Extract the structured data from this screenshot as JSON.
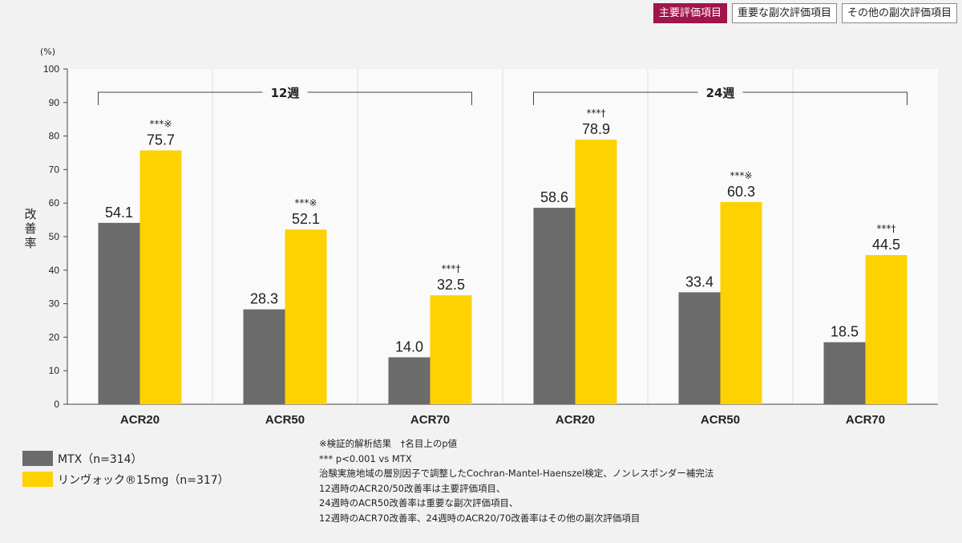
{
  "tabs": [
    {
      "label": "主要評価項目",
      "active": true
    },
    {
      "label": "重要な副次評価項目",
      "active": false
    },
    {
      "label": "その他の副次評価項目",
      "active": false
    }
  ],
  "colors": {
    "mtx": "#6b6b6b",
    "rinvoq": "#fdd200",
    "accent": "#a0154a"
  },
  "chart_data": {
    "type": "bar",
    "ylabel": "改善率",
    "yunit": "(%)",
    "ylim": [
      0,
      100
    ],
    "yticks": [
      0,
      10,
      20,
      30,
      40,
      50,
      60,
      70,
      80,
      90,
      100
    ],
    "grid": false,
    "categories": [
      "ACR20",
      "ACR50",
      "ACR70",
      "ACR20",
      "ACR50",
      "ACR70"
    ],
    "groups": [
      {
        "label": "12週",
        "categories": [
          0,
          1,
          2
        ]
      },
      {
        "label": "24週",
        "categories": [
          3,
          4,
          5
        ]
      }
    ],
    "series": [
      {
        "name": "MTX（n=314）",
        "values": [
          54.1,
          28.3,
          14.0,
          58.6,
          33.4,
          18.5
        ]
      },
      {
        "name": "リンヴォック®15mg（n=317）",
        "values": [
          75.7,
          52.1,
          32.5,
          78.9,
          60.3,
          44.5
        ]
      }
    ],
    "annotations": [
      "***※",
      "***※",
      "***†",
      "***†",
      "***※",
      "***†"
    ],
    "legend_position": "bottom-left"
  },
  "notes": [
    "※検証的解析結果　†名目上のp値",
    "*** p<0.001 vs MTX",
    "治験実施地域の層別因子で調整したCochran-Mantel-Haenszel検定、ノンレスポンダー補完法",
    "12週時のACR20/50改善率は主要評価項目、",
    "24週時のACR50改善率は重要な副次評価項目、",
    "12週時のACR70改善率、24週時のACR20/70改善率はその他の副次評価項目"
  ]
}
